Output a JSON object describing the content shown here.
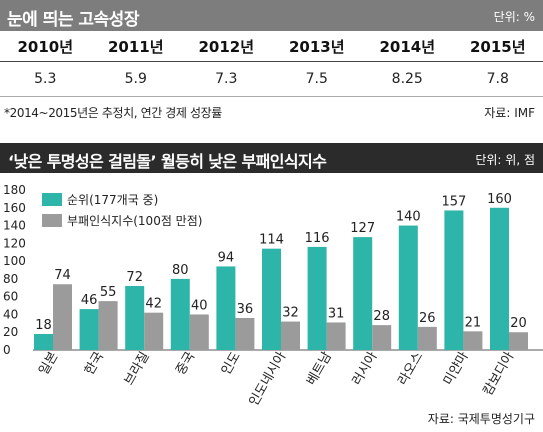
{
  "growth_panel": {
    "title": "눈에 띄는 고속성장",
    "unit": "단위: %",
    "years": [
      "2010년",
      "2011년",
      "2012년",
      "2013년",
      "2014년",
      "2015년"
    ],
    "values": [
      "5.3",
      "5.9",
      "7.3",
      "7.5",
      "8.25",
      "7.8"
    ],
    "note": "*2014~2015년은 추정치, 연간 경제 성장률",
    "source": "자료: IMF"
  },
  "chart_panel": {
    "title": "‘낮은 투명성은 걸림돌’ 월등히 낮은 부패인식지수",
    "unit": "단위: 위, 점",
    "source": "자료: 국제투명성기구"
  },
  "chart_data": {
    "type": "bar",
    "categories": [
      "일본",
      "한국",
      "브라질",
      "중국",
      "인도",
      "인도네시아",
      "베트남",
      "러시아",
      "라오스",
      "미얀마",
      "캄보디아"
    ],
    "series": [
      {
        "name": "순위(177개국 중)",
        "values": [
          18,
          46,
          72,
          80,
          94,
          114,
          116,
          127,
          140,
          157,
          160
        ],
        "color": "#2cb5a8"
      },
      {
        "name": "부패인식지수(100점 만점)",
        "values": [
          74,
          55,
          42,
          40,
          36,
          32,
          31,
          28,
          26,
          21,
          20
        ],
        "color": "#9b9b9b"
      }
    ],
    "ylim": [
      0,
      180
    ],
    "yticks": [
      "0",
      "20",
      "40",
      "60",
      "80",
      "100",
      "120",
      "140",
      "160",
      "180"
    ],
    "grid": false,
    "legend_position": "top-left"
  }
}
